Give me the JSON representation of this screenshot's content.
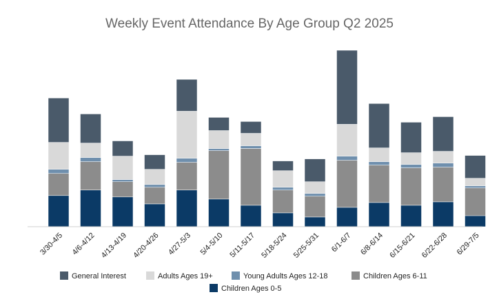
{
  "chart_data": {
    "type": "bar",
    "stacked": true,
    "title": "Weekly Event Attendance By Age Group Q2 2025",
    "xlabel": "",
    "ylabel": "",
    "ylim": [
      0,
      255
    ],
    "grid": false,
    "legend_position": "bottom",
    "categories": [
      "3/30-4/5",
      "4/6-4/12",
      "4/13-4/19",
      "4/20-4/26",
      "4/27-5/3",
      "5/4-5/10",
      "5/11-5/17",
      "5/18-5/24",
      "5/25-5/31",
      "6/1-6/7",
      "6/8-6/14",
      "6/15-6/21",
      "6/22-6/28",
      "6/29-7/5"
    ],
    "series": [
      {
        "name": "Children Ages 0-5",
        "color": "#0b3a66",
        "values": [
          45,
          53,
          43,
          33,
          53,
          40,
          31,
          20,
          14,
          28,
          35,
          31,
          36,
          16
        ]
      },
      {
        "name": "Children Ages 6-11",
        "color": "#8c8c8c",
        "values": [
          32,
          41,
          22,
          24,
          40,
          70,
          82,
          33,
          30,
          68,
          54,
          54,
          50,
          40
        ]
      },
      {
        "name": "Young Adults Ages 12-18",
        "color": "#6f8fad",
        "values": [
          6,
          6,
          3,
          4,
          6,
          3,
          4,
          4,
          4,
          6,
          5,
          5,
          6,
          3
        ]
      },
      {
        "name": "Adults Ages 19+",
        "color": "#d9d9d9",
        "values": [
          39,
          21,
          34,
          22,
          68,
          26,
          18,
          24,
          17,
          46,
          20,
          17,
          17,
          11
        ]
      },
      {
        "name": "General Interest",
        "color": "#4a5a6a",
        "values": [
          64,
          42,
          22,
          21,
          46,
          19,
          17,
          14,
          33,
          107,
          64,
          44,
          50,
          33
        ]
      }
    ]
  },
  "legend": {
    "items": [
      {
        "name": "General Interest",
        "color": "#4a5a6a"
      },
      {
        "name": "Adults Ages 19+",
        "color": "#d9d9d9"
      },
      {
        "name": "Young Adults Ages 12-18",
        "color": "#6f8fad"
      },
      {
        "name": "Children Ages 6-11",
        "color": "#8c8c8c"
      },
      {
        "name": "Children Ages 0-5",
        "color": "#0b3a66"
      }
    ]
  }
}
